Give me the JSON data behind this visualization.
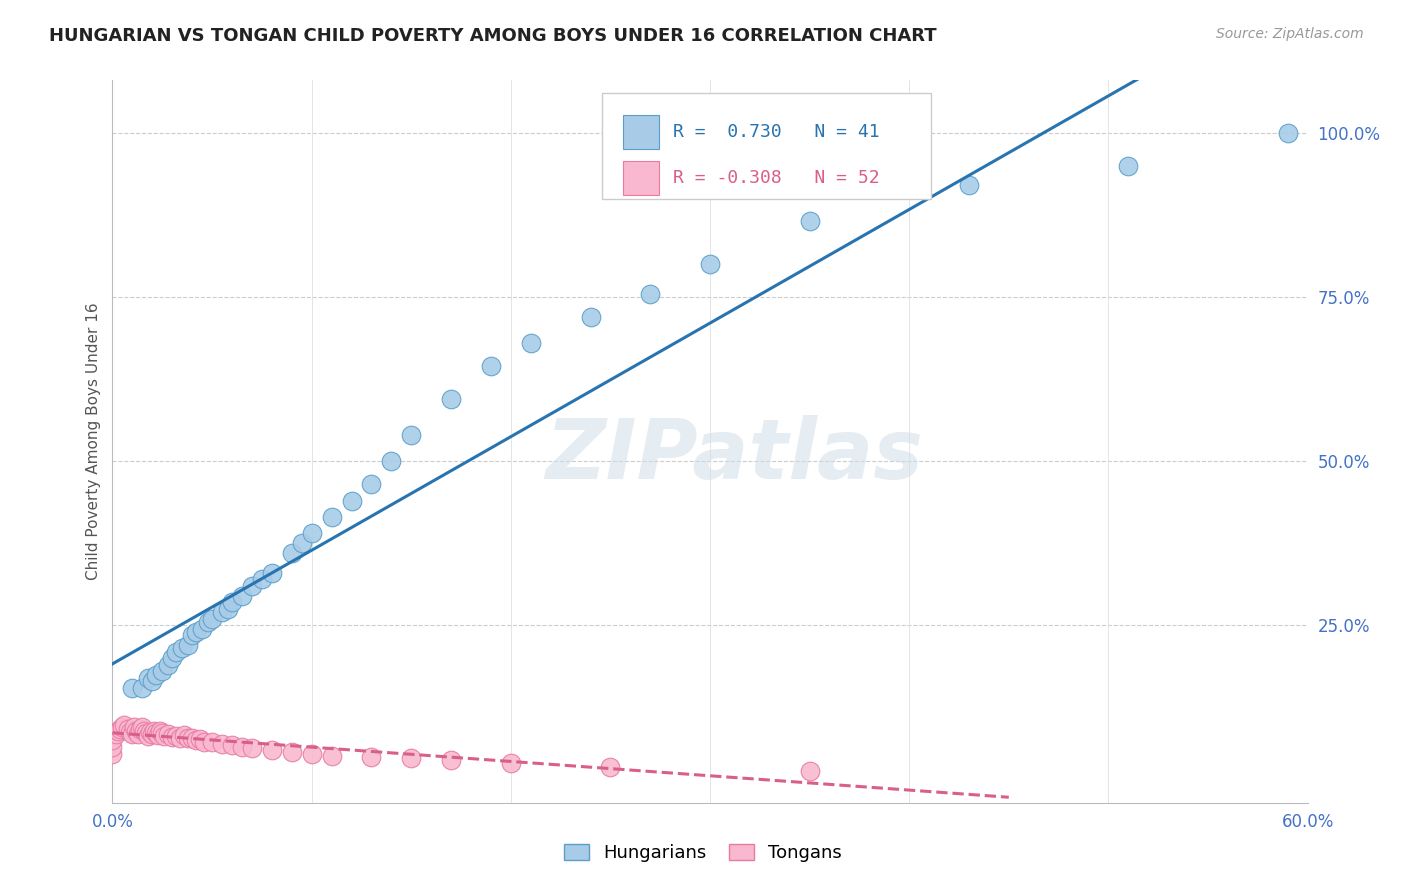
{
  "title": "HUNGARIAN VS TONGAN CHILD POVERTY AMONG BOYS UNDER 16 CORRELATION CHART",
  "source": "Source: ZipAtlas.com",
  "ylabel": "Child Poverty Among Boys Under 16",
  "xlim": [
    0.0,
    0.6
  ],
  "ylim": [
    -0.02,
    1.08
  ],
  "hungarian_R": 0.73,
  "hungarian_N": 41,
  "tongan_R": -0.308,
  "tongan_N": 52,
  "blue_color": "#a8cce8",
  "blue_edge_color": "#5b9ec9",
  "blue_line_color": "#2874b0",
  "pink_color": "#f9b8cf",
  "pink_edge_color": "#e87aa3",
  "pink_line_color": "#d95f8a",
  "background_color": "#ffffff",
  "watermark": "ZIPatlas",
  "legend_blue_label": "Hungarians",
  "legend_pink_label": "Tongans",
  "hungarian_x": [
    0.01,
    0.015,
    0.018,
    0.02,
    0.022,
    0.025,
    0.028,
    0.03,
    0.032,
    0.035,
    0.038,
    0.04,
    0.042,
    0.045,
    0.048,
    0.05,
    0.055,
    0.058,
    0.06,
    0.065,
    0.07,
    0.075,
    0.08,
    0.09,
    0.095,
    0.1,
    0.11,
    0.12,
    0.13,
    0.14,
    0.15,
    0.17,
    0.19,
    0.21,
    0.24,
    0.27,
    0.3,
    0.35,
    0.43,
    0.51,
    0.59
  ],
  "hungarian_y": [
    0.155,
    0.155,
    0.17,
    0.165,
    0.175,
    0.18,
    0.19,
    0.2,
    0.21,
    0.215,
    0.22,
    0.235,
    0.24,
    0.245,
    0.255,
    0.26,
    0.27,
    0.275,
    0.285,
    0.295,
    0.31,
    0.32,
    0.33,
    0.36,
    0.375,
    0.39,
    0.415,
    0.44,
    0.465,
    0.5,
    0.54,
    0.595,
    0.645,
    0.68,
    0.72,
    0.755,
    0.8,
    0.865,
    0.92,
    0.95,
    1.0
  ],
  "tongan_x": [
    0.0,
    0.0,
    0.0,
    0.002,
    0.003,
    0.004,
    0.005,
    0.006,
    0.008,
    0.009,
    0.01,
    0.011,
    0.012,
    0.013,
    0.014,
    0.015,
    0.016,
    0.017,
    0.018,
    0.019,
    0.02,
    0.021,
    0.022,
    0.023,
    0.024,
    0.025,
    0.026,
    0.028,
    0.03,
    0.032,
    0.034,
    0.036,
    0.038,
    0.04,
    0.042,
    0.044,
    0.046,
    0.05,
    0.055,
    0.06,
    0.065,
    0.07,
    0.08,
    0.09,
    0.1,
    0.11,
    0.13,
    0.15,
    0.17,
    0.2,
    0.25,
    0.35
  ],
  "tongan_y": [
    0.055,
    0.065,
    0.075,
    0.085,
    0.09,
    0.092,
    0.095,
    0.098,
    0.092,
    0.088,
    0.085,
    0.095,
    0.09,
    0.085,
    0.092,
    0.095,
    0.09,
    0.086,
    0.082,
    0.088,
    0.085,
    0.09,
    0.087,
    0.083,
    0.089,
    0.086,
    0.082,
    0.085,
    0.08,
    0.082,
    0.078,
    0.083,
    0.079,
    0.078,
    0.075,
    0.077,
    0.073,
    0.072,
    0.07,
    0.068,
    0.065,
    0.063,
    0.06,
    0.058,
    0.055,
    0.052,
    0.05,
    0.048,
    0.045,
    0.04,
    0.035,
    0.028
  ]
}
